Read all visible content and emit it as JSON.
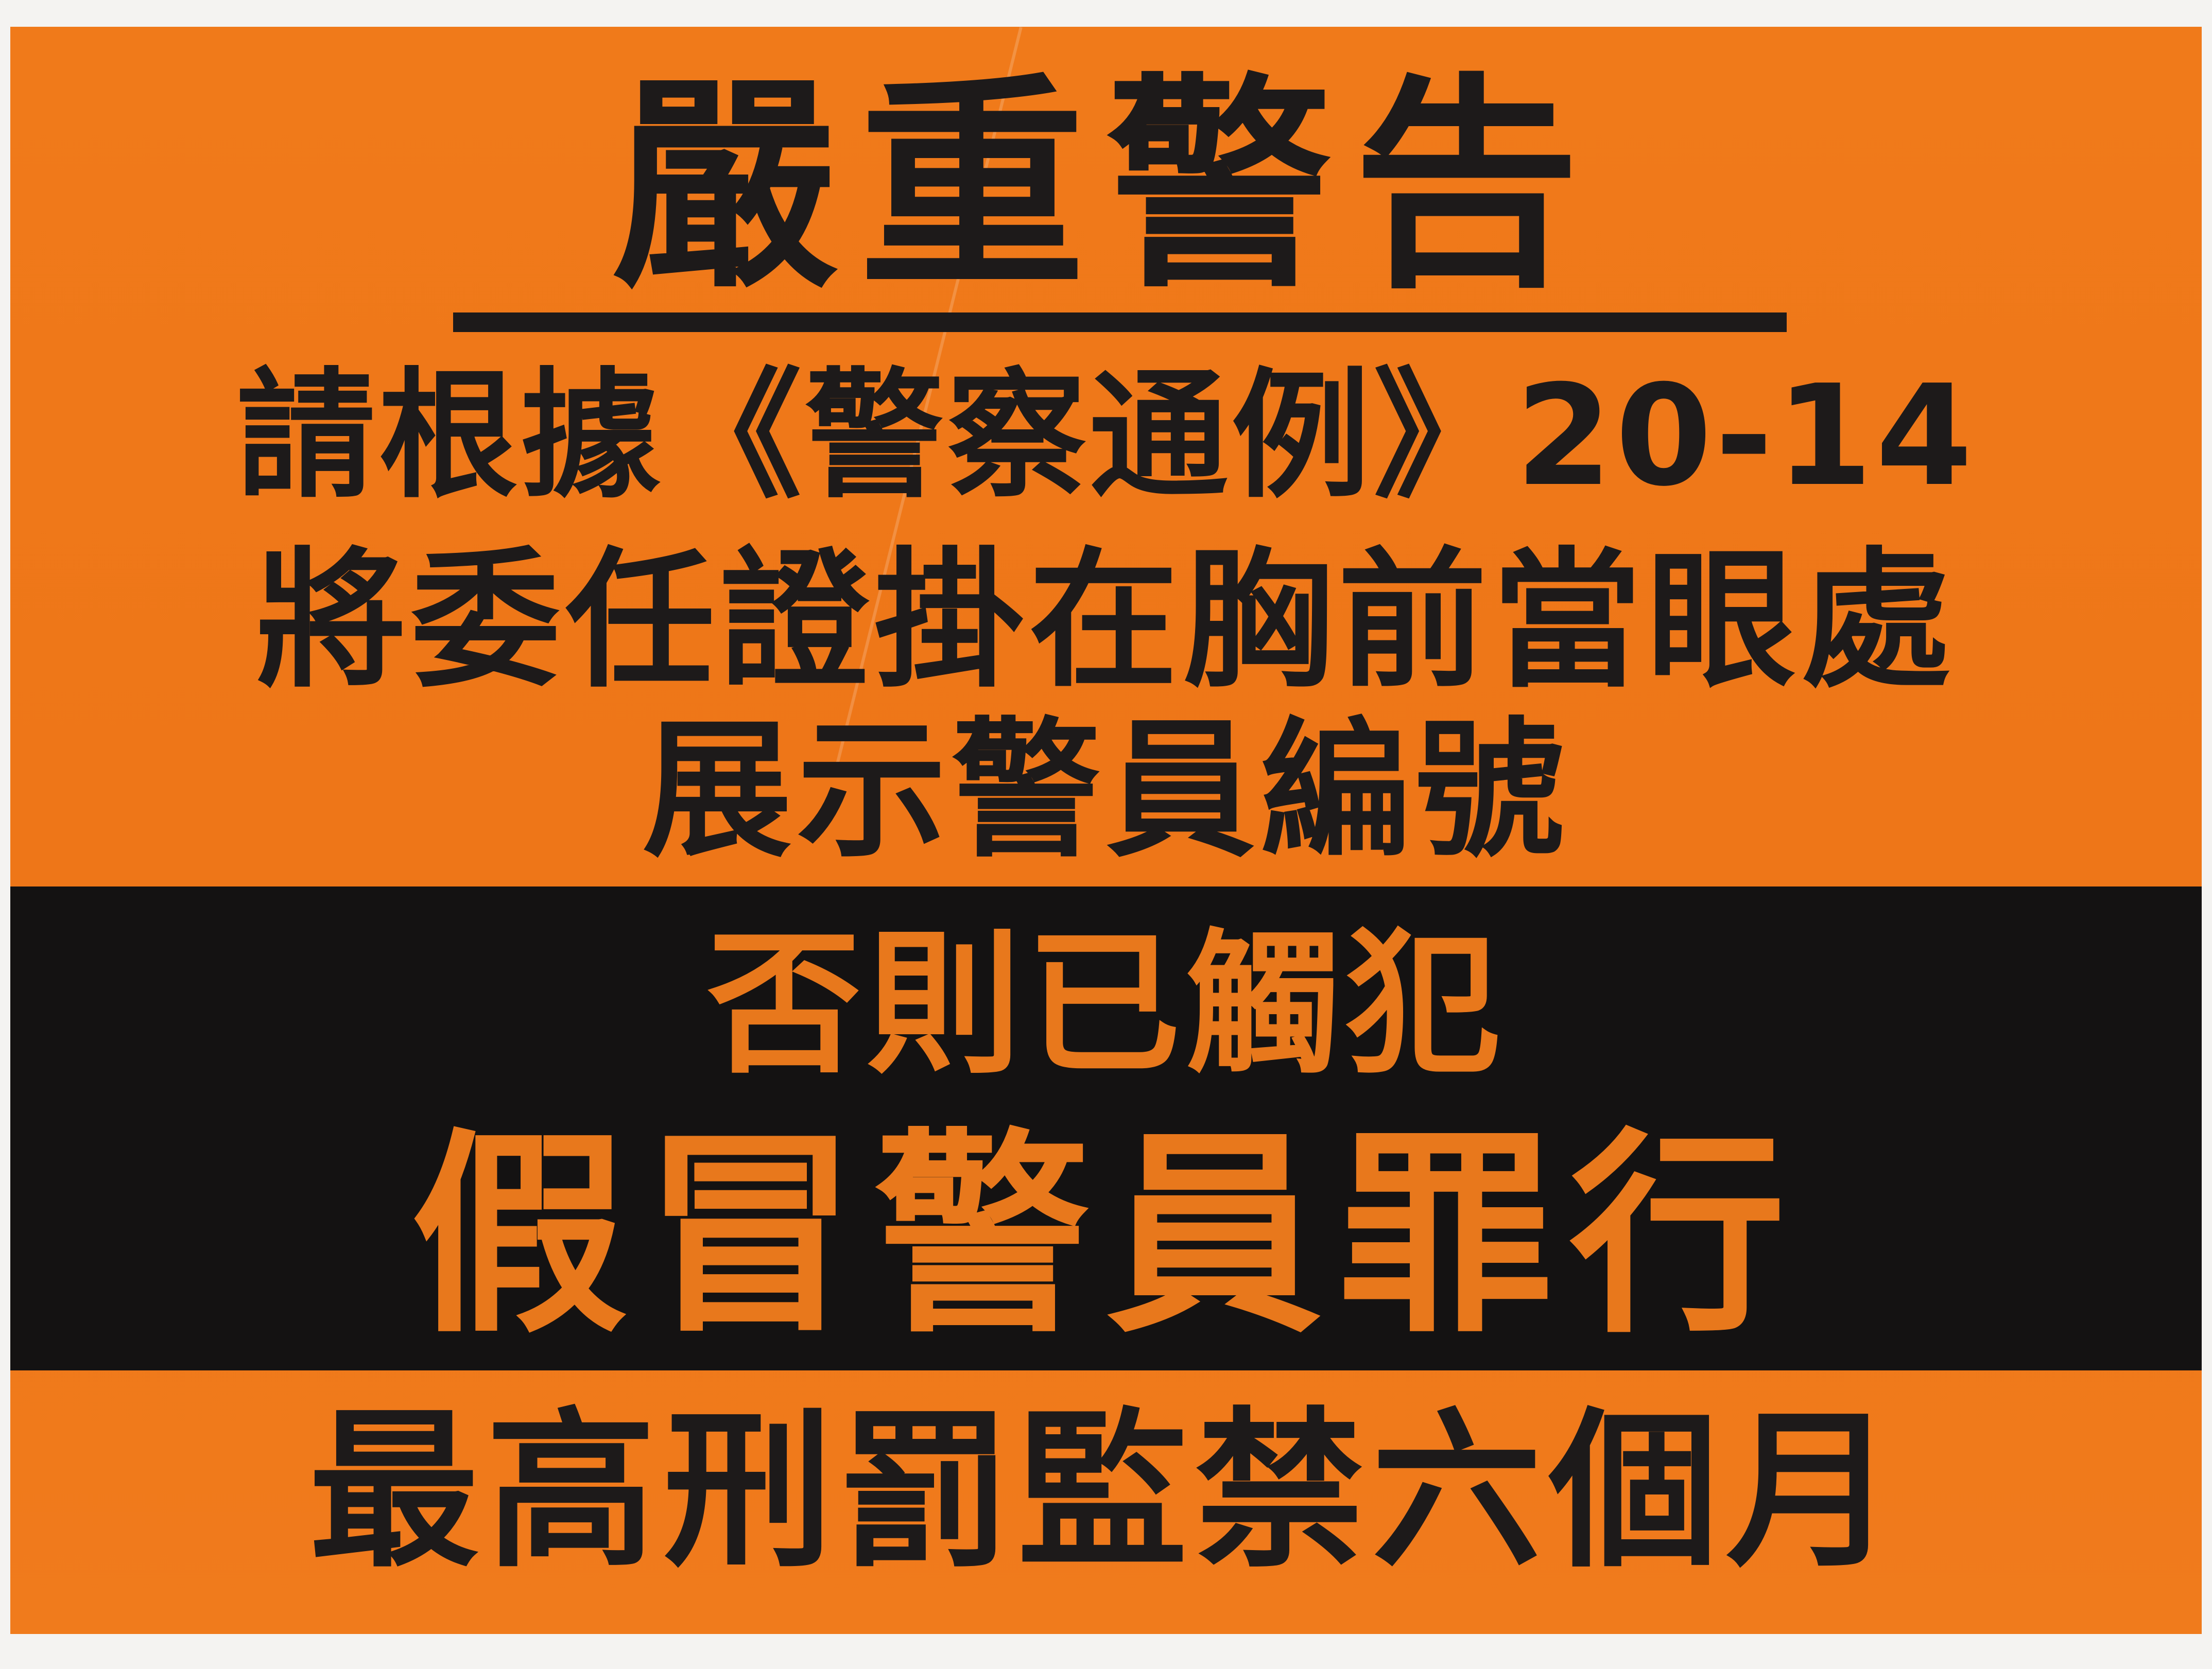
{
  "sign": {
    "title": "嚴重警告",
    "line1": "請根據《警察通例》20-14",
    "line2": "將委任證掛在胸前當眼處",
    "line3": "展示警員編號",
    "band_line1": "否則已觸犯",
    "band_line2": "假冒警員罪行",
    "footer": "最高刑罰監禁六個月"
  },
  "colors": {
    "background": "#ef7819",
    "text": "#1d1a1a",
    "band": "#141212",
    "band_text": "#e8781c"
  }
}
